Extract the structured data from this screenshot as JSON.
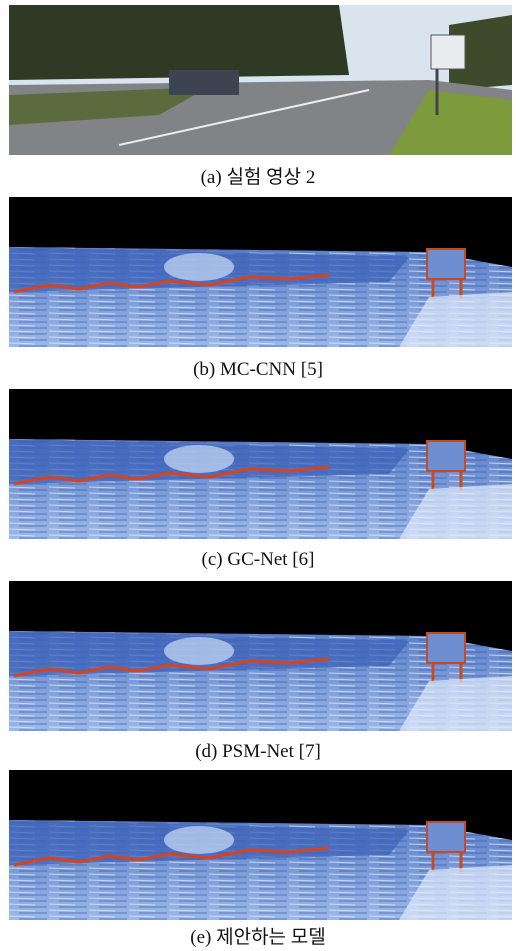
{
  "figure": {
    "panels": [
      {
        "caption": "(a) 실험 영상 2"
      },
      {
        "caption": "(b) MC-CNN [5]"
      },
      {
        "caption": "(c) GC-Net [6]"
      },
      {
        "caption": "(d) PSM-Net [7]"
      },
      {
        "caption": "(e) 제안하는 모델"
      }
    ]
  }
}
